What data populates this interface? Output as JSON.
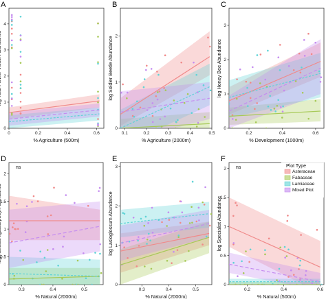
{
  "legend": {
    "title": "Plot Type",
    "items": [
      {
        "label": "Asteraceae",
        "color": "#f08a8a"
      },
      {
        "label": "Fabaceae",
        "color": "#a7c957"
      },
      {
        "label": "Lamiaceae",
        "color": "#5fd3d6"
      },
      {
        "label": "Mixed Plot",
        "color": "#c58cf0"
      }
    ]
  },
  "chart_data": [
    {
      "panel": "A",
      "type": "scatter",
      "xlabel": "% Agriculture (500m)",
      "ylabel": "log Total Flower Visitor Abundance",
      "xlim": [
        0,
        0.65
      ],
      "ylim": [
        0,
        4.6
      ],
      "xticks": [
        0,
        0.2,
        0.4,
        0.6
      ],
      "xticklabels": [
        "0",
        "0.2",
        "0.4",
        "0.6"
      ],
      "yticks": [
        0,
        1,
        2,
        3,
        4
      ],
      "yticklabels": [
        "0",
        "1",
        "2",
        "3",
        "4"
      ],
      "note": "",
      "series": [
        {
          "name": "Asteraceae",
          "fit": [
            [
              0,
              0.6
            ],
            [
              0.62,
              1.05
            ]
          ],
          "ci_low": [
            0.35,
            0.8
          ],
          "ci_high": [
            0.8,
            1.3
          ]
        },
        {
          "name": "Fabaceae",
          "fit": [
            [
              0,
              -0.35
            ],
            [
              0.62,
              -0.75
            ]
          ],
          "ci_low": [
            -0.6,
            -1.1
          ],
          "ci_high": [
            -0.1,
            -0.4
          ]
        },
        {
          "name": "Lamiaceae",
          "fit": [
            [
              0,
              0.25
            ],
            [
              0.62,
              0.55
            ]
          ],
          "ci_low": [
            0.0,
            0.3
          ],
          "ci_high": [
            0.5,
            0.8
          ]
        },
        {
          "name": "Mixed Plot",
          "fit": [
            [
              0,
              0.35
            ],
            [
              0.62,
              0.7
            ]
          ],
          "ci_low": [
            0.1,
            0.45
          ],
          "ci_high": [
            0.6,
            0.95
          ]
        }
      ],
      "points_x": [
        0.02,
        0.08,
        0.61
      ],
      "points_y_range": [
        -0.3,
        4.4
      ]
    },
    {
      "panel": "B",
      "type": "scatter",
      "xlabel": "% Agriculture (2000m)",
      "ylabel": "log Soldier Beetle Abundance",
      "xlim": [
        0.08,
        0.5
      ],
      "ylim": [
        0,
        2.6
      ],
      "xticks": [
        0.1,
        0.2,
        0.3,
        0.4,
        0.5
      ],
      "xticklabels": [
        "0.1",
        "0.2",
        "0.3",
        "0.4",
        "0.5"
      ],
      "yticks": [
        0,
        1,
        2
      ],
      "yticklabels": [
        "0",
        "1",
        "2"
      ],
      "note": "",
      "series": [
        {
          "name": "Asteraceae",
          "fit": [
            [
              0.08,
              0.3
            ],
            [
              0.49,
              1.55
            ]
          ],
          "ci_low": [
            0.05,
            1.15
          ],
          "ci_high": [
            0.65,
            2.1
          ]
        },
        {
          "name": "Fabaceae",
          "fit": [
            [
              0.08,
              0.0
            ],
            [
              0.49,
              0.1
            ]
          ],
          "ci_low": [
            -0.2,
            -0.1
          ],
          "ci_high": [
            0.2,
            0.35
          ]
        },
        {
          "name": "Lamiaceae",
          "fit": [
            [
              0.08,
              0.0
            ],
            [
              0.49,
              0.9
            ]
          ],
          "ci_low": [
            -0.4,
            0.5
          ],
          "ci_high": [
            0.4,
            1.4
          ]
        },
        {
          "name": "Mixed Plot",
          "fit": [
            [
              0.08,
              0.35
            ],
            [
              0.49,
              0.65
            ]
          ],
          "ci_low": [
            -0.3,
            0.2
          ],
          "ci_high": [
            0.8,
            1.0
          ]
        }
      ]
    },
    {
      "panel": "C",
      "type": "scatter",
      "xlabel": "% Development (1000m)",
      "ylabel": "log Honey Bee Abundance",
      "xlim": [
        0.08,
        0.65
      ],
      "ylim": [
        0,
        3.5
      ],
      "xticks": [
        0.2,
        0.4,
        0.6
      ],
      "xticklabels": [
        "0.2",
        "0.4",
        "0.6"
      ],
      "yticks": [
        0,
        1,
        2,
        3
      ],
      "yticklabels": [
        "0",
        "1",
        "2",
        "3"
      ],
      "note": "",
      "series": [
        {
          "name": "Asteraceae",
          "fit": [
            [
              0.08,
              0.8
            ],
            [
              0.63,
              1.95
            ]
          ],
          "ci_low": [
            0.4,
            1.5
          ],
          "ci_high": [
            1.2,
            2.5
          ]
        },
        {
          "name": "Fabaceae",
          "fit": [
            [
              0.08,
              0.35
            ],
            [
              0.63,
              0.5
            ]
          ],
          "ci_low": [
            0.1,
            0.2
          ],
          "ci_high": [
            0.6,
            0.85
          ]
        },
        {
          "name": "Lamiaceae",
          "fit": [
            [
              0.08,
              0.9
            ],
            [
              0.63,
              1.6
            ]
          ],
          "ci_low": [
            0.3,
            0.9
          ],
          "ci_high": [
            1.4,
            2.2
          ]
        },
        {
          "name": "Mixed Plot",
          "fit": [
            [
              0.08,
              0.5
            ],
            [
              0.63,
              1.75
            ]
          ],
          "ci_low": [
            0.0,
            1.0
          ],
          "ci_high": [
            0.95,
            2.6
          ]
        }
      ]
    },
    {
      "panel": "D",
      "type": "scatter",
      "xlabel": "% Natural (2000m)",
      "ylabel": "log Halictus ligatus/poeyi Abundance",
      "xlim": [
        0.26,
        0.56
      ],
      "ylim": [
        0,
        2.2
      ],
      "xticks": [
        0.3,
        0.4,
        0.5
      ],
      "xticklabels": [
        "0.3",
        "0.4",
        "0.5"
      ],
      "yticks": [
        0,
        0.5,
        1,
        1.5,
        2
      ],
      "yticklabels": [
        "0",
        "0.5",
        "1",
        "1.5",
        "2"
      ],
      "note": "ns",
      "series": [
        {
          "name": "Asteraceae",
          "fit": [
            [
              0.26,
              1.15
            ],
            [
              0.55,
              1.15
            ]
          ],
          "ci_low": [
            0.8,
            0.8
          ],
          "ci_high": [
            1.6,
            1.35
          ]
        },
        {
          "name": "Fabaceae",
          "fit": [
            [
              0.26,
              0.1
            ],
            [
              0.55,
              0.15
            ]
          ],
          "ci_low": [
            -0.05,
            0.0
          ],
          "ci_high": [
            0.3,
            0.3
          ]
        },
        {
          "name": "Lamiaceae",
          "fit": [
            [
              0.26,
              0.2
            ],
            [
              0.55,
              0.15
            ]
          ],
          "ci_low": [
            0.0,
            -0.05
          ],
          "ci_high": [
            0.5,
            0.45
          ]
        },
        {
          "name": "Mixed Plot",
          "fit": [
            [
              0.26,
              0.75
            ],
            [
              0.55,
              1.05
            ]
          ],
          "ci_low": [
            0.3,
            0.6
          ],
          "ci_high": [
            1.35,
            1.5
          ]
        }
      ]
    },
    {
      "panel": "E",
      "type": "scatter",
      "xlabel": "% Natural (2000m)",
      "ylabel": "log Lasioglossum Abundance",
      "xlim": [
        0.22,
        0.56
      ],
      "ylim": [
        0,
        3.1
      ],
      "xticks": [
        0.3,
        0.4,
        0.5
      ],
      "xticklabels": [
        "0.3",
        "0.4",
        "0.5"
      ],
      "yticks": [
        0,
        1,
        2,
        3
      ],
      "yticklabels": [
        "0",
        "1",
        "2",
        "3"
      ],
      "note": "",
      "series": [
        {
          "name": "Asteraceae",
          "fit": [
            [
              0.22,
              0.85
            ],
            [
              0.55,
              1.3
            ]
          ],
          "ci_low": [
            0.3,
            1.0
          ],
          "ci_high": [
            1.3,
            1.6
          ]
        },
        {
          "name": "Fabaceae",
          "fit": [
            [
              0.22,
              0.5
            ],
            [
              0.55,
              1.2
            ]
          ],
          "ci_low": [
            0.0,
            0.8
          ],
          "ci_high": [
            0.9,
            1.6
          ]
        },
        {
          "name": "Lamiaceae",
          "fit": [
            [
              0.22,
              1.55
            ],
            [
              0.55,
              1.8
            ]
          ],
          "ci_low": [
            1.2,
            1.45
          ],
          "ci_high": [
            1.9,
            2.1
          ]
        },
        {
          "name": "Mixed Plot",
          "fit": [
            [
              0.22,
              1.05
            ],
            [
              0.55,
              1.55
            ]
          ],
          "ci_low": [
            0.6,
            1.2
          ],
          "ci_high": [
            1.5,
            1.9
          ]
        }
      ]
    },
    {
      "panel": "F",
      "type": "scatter",
      "xlabel": "% Natural (500m)",
      "ylabel": "log Specialist Abundance",
      "xlim": [
        0.1,
        0.62
      ],
      "ylim": [
        0,
        2.1
      ],
      "xticks": [
        0.2,
        0.4,
        0.6
      ],
      "xticklabels": [
        "0.2",
        "0.4",
        "0.6"
      ],
      "yticks": [
        0,
        0.5,
        1,
        1.5,
        2
      ],
      "yticklabels": [
        "0",
        "0.5",
        "1",
        "1.5",
        "2"
      ],
      "note": "ns",
      "series": [
        {
          "name": "Asteraceae",
          "fit": [
            [
              0.1,
              1.0
            ],
            [
              0.6,
              0.3
            ]
          ],
          "ci_low": [
            0.65,
            -0.15
          ],
          "ci_high": [
            1.5,
            0.75
          ]
        },
        {
          "name": "Fabaceae",
          "fit": [
            [
              0.1,
              0.0
            ],
            [
              0.6,
              0.0
            ]
          ],
          "ci_low": [
            -0.05,
            -0.05
          ],
          "ci_high": [
            0.05,
            0.05
          ]
        },
        {
          "name": "Lamiaceae",
          "fit": [
            [
              0.1,
              0.05
            ],
            [
              0.6,
              0.05
            ]
          ],
          "ci_low": [
            0.0,
            0.0
          ],
          "ci_high": [
            0.1,
            0.1
          ]
        },
        {
          "name": "Mixed Plot",
          "fit": [
            [
              0.1,
              0.35
            ],
            [
              0.6,
              0.05
            ]
          ],
          "ci_low": [
            0.2,
            -0.1
          ],
          "ci_high": [
            0.55,
            0.2
          ]
        }
      ]
    }
  ]
}
